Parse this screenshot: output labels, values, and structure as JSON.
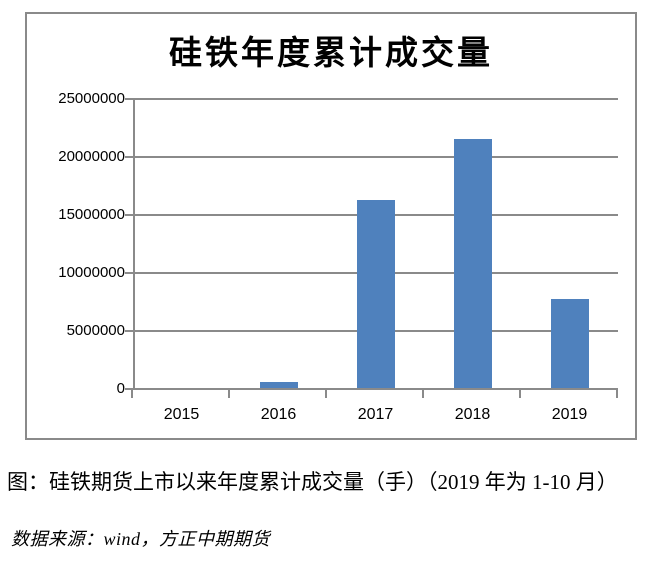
{
  "chart_data": {
    "type": "bar",
    "title": "硅铁年度累计成交量",
    "categories": [
      "2015",
      "2016",
      "2017",
      "2018",
      "2019"
    ],
    "values": [
      0,
      500000,
      16200000,
      21500000,
      7700000
    ],
    "xlabel": "",
    "ylabel": "",
    "ylim": [
      0,
      25000000
    ],
    "ytick_interval": 5000000,
    "ytick_labels": [
      "0",
      "5000000",
      "10000000",
      "15000000",
      "20000000",
      "25000000"
    ],
    "grid": true,
    "legend": false,
    "bar_color": "#4F81BD",
    "axis_color": "#8A8A8A"
  },
  "caption": {
    "text": "图：硅铁期货上市以来年度累计成交量（手）（2019 年为 1-10 月）"
  },
  "source": {
    "text": "数据来源：wind，方正中期期货"
  }
}
